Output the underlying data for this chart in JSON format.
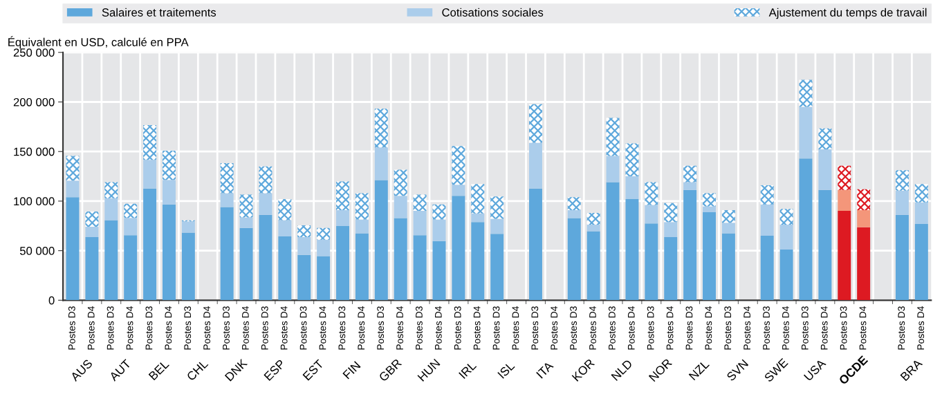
{
  "chart_data": {
    "type": "bar",
    "stacked": true,
    "ylabel": "Équivalent en USD, calculé en PPA",
    "categories": [
      "Postes D3",
      "Postes D4",
      "Postes D3",
      "Postes D4",
      "Postes D3",
      "Postes D4",
      "Postes D3",
      "Postes D4",
      "Postes D3",
      "Postes D4",
      "Postes D3",
      "Postes D4",
      "Postes D3",
      "Postes D4",
      "Postes D3",
      "Postes D4",
      "Postes D3",
      "Postes D4",
      "Postes D3",
      "Postes D4",
      "Postes D3",
      "Postes D4",
      "Postes D3",
      "Postes D4",
      "Postes D3",
      "Postes D4",
      "Postes D3",
      "Postes D4",
      "Postes D3",
      "Postes D4",
      "Postes D3",
      "Postes D4",
      "Postes D3",
      "Postes D4",
      "Postes D3",
      "Postes D4",
      "Postes D3",
      "Postes D4",
      "Postes D3",
      "Postes D4",
      "Postes D3",
      "Postes D4",
      null,
      "Postes D3",
      "Postes D4"
    ],
    "annotations": [
      "AUS",
      "AUT",
      "BEL",
      "CHL",
      "DNK",
      "ESP",
      "EST",
      "FIN",
      "GBR",
      "HUN",
      "IRL",
      "ISL",
      "ITA",
      "KOR",
      "NLD",
      "NOR",
      "NZL",
      "SVN",
      "SWE",
      "USA",
      "OCDE",
      "BRA"
    ],
    "series": [
      {
        "name": "Salaires et traitements",
        "color": "#5ea8dc",
        "colors": [
          "#5ea8dc",
          "#5ea8dc",
          "#5ea8dc",
          "#5ea8dc",
          "#5ea8dc",
          "#5ea8dc",
          "#5ea8dc",
          "#5ea8dc",
          "#5ea8dc",
          "#5ea8dc",
          "#5ea8dc",
          "#5ea8dc",
          "#5ea8dc",
          "#5ea8dc",
          "#5ea8dc",
          "#5ea8dc",
          "#5ea8dc",
          "#5ea8dc",
          "#5ea8dc",
          "#5ea8dc",
          "#5ea8dc",
          "#5ea8dc",
          "#5ea8dc",
          "#5ea8dc",
          "#5ea8dc",
          "#5ea8dc",
          "#5ea8dc",
          "#5ea8dc",
          "#5ea8dc",
          "#5ea8dc",
          "#5ea8dc",
          "#5ea8dc",
          "#5ea8dc",
          "#5ea8dc",
          "#5ea8dc",
          "#5ea8dc",
          "#5ea8dc",
          "#5ea8dc",
          "#5ea8dc",
          "#5ea8dc",
          "#dd1a22",
          "#dd1a22",
          "#5ea8dc",
          "#5ea8dc",
          "#5ea8dc"
        ],
        "values": [
          104000,
          63700,
          80800,
          65600,
          112600,
          96700,
          68300,
          null,
          94100,
          72900,
          86100,
          64300,
          45800,
          44500,
          74900,
          67600,
          121200,
          82800,
          65600,
          59700,
          105300,
          78900,
          67000,
          null,
          112600,
          null,
          82800,
          69600,
          119200,
          102000,
          77500,
          63700,
          111300,
          88800,
          67600,
          null,
          65000,
          51100,
          143000,
          111300,
          90100,
          73600,
          null,
          86100,
          76900
        ]
      },
      {
        "name": "Cotisations sociales",
        "color": "#abcdeb",
        "colors": [
          "#abcdeb",
          "#abcdeb",
          "#abcdeb",
          "#abcdeb",
          "#abcdeb",
          "#abcdeb",
          "#abcdeb",
          "#abcdeb",
          "#abcdeb",
          "#abcdeb",
          "#abcdeb",
          "#abcdeb",
          "#abcdeb",
          "#abcdeb",
          "#abcdeb",
          "#abcdeb",
          "#abcdeb",
          "#abcdeb",
          "#abcdeb",
          "#abcdeb",
          "#abcdeb",
          "#abcdeb",
          "#abcdeb",
          "#abcdeb",
          "#abcdeb",
          "#abcdeb",
          "#abcdeb",
          "#abcdeb",
          "#abcdeb",
          "#abcdeb",
          "#abcdeb",
          "#abcdeb",
          "#abcdeb",
          "#abcdeb",
          "#abcdeb",
          "#abcdeb",
          "#abcdeb",
          "#abcdeb",
          "#abcdeb",
          "#abcdeb",
          "#f4967a",
          "#f4967a",
          "#abcdeb",
          "#abcdeb",
          "#abcdeb"
        ],
        "values": [
          16700,
          10500,
          22100,
          17500,
          29000,
          24700,
          11200,
          null,
          13800,
          10600,
          21800,
          16500,
          17900,
          16500,
          15900,
          13900,
          33000,
          22500,
          24500,
          21800,
          11200,
          8600,
          15200,
          null,
          46200,
          null,
          8000,
          6600,
          26400,
          23100,
          18600,
          15200,
          7900,
          5900,
          10600,
          null,
          31700,
          25100,
          52200,
          40900,
          21200,
          17200,
          null,
          24500,
          21800
        ]
      },
      {
        "name": "Ajustement du temps de travail",
        "color": "#5ea8dc",
        "colors": [
          "#5ea8dc",
          "#5ea8dc",
          "#5ea8dc",
          "#5ea8dc",
          "#5ea8dc",
          "#5ea8dc",
          "#5ea8dc",
          "#5ea8dc",
          "#5ea8dc",
          "#5ea8dc",
          "#5ea8dc",
          "#5ea8dc",
          "#5ea8dc",
          "#5ea8dc",
          "#5ea8dc",
          "#5ea8dc",
          "#5ea8dc",
          "#5ea8dc",
          "#5ea8dc",
          "#5ea8dc",
          "#5ea8dc",
          "#5ea8dc",
          "#5ea8dc",
          "#5ea8dc",
          "#5ea8dc",
          "#5ea8dc",
          "#5ea8dc",
          "#5ea8dc",
          "#5ea8dc",
          "#5ea8dc",
          "#5ea8dc",
          "#5ea8dc",
          "#5ea8dc",
          "#5ea8dc",
          "#5ea8dc",
          "#5ea8dc",
          "#5ea8dc",
          "#5ea8dc",
          "#5ea8dc",
          "#5ea8dc",
          "#dd1a22",
          "#dd1a22",
          "#5ea8dc",
          "#5ea8dc",
          "#5ea8dc"
        ],
        "values": [
          24900,
          15200,
          16300,
          14300,
          35100,
          29500,
          1100,
          null,
          30400,
          23100,
          27100,
          21200,
          11900,
          11900,
          29000,
          26400,
          39000,
          26400,
          16500,
          15200,
          39000,
          29700,
          22400,
          null,
          39000,
          null,
          13200,
          11900,
          38300,
          33100,
          23100,
          19100,
          16500,
          13200,
          12600,
          null,
          19200,
          15900,
          27100,
          21200,
          24400,
          21100,
          null,
          20500,
          18500
        ]
      }
    ],
    "ylim": [
      0,
      250000
    ],
    "yticks": [
      0,
      {
        "value": 50000,
        "label": "50 000"
      },
      {
        "value": 100000,
        "label": "100 000"
      },
      {
        "value": 150000,
        "label": "150 000"
      },
      {
        "value": 200000,
        "label": "200 000"
      },
      {
        "value": 250000,
        "label": "250 000"
      }
    ],
    "grid": true,
    "legend": "top"
  }
}
